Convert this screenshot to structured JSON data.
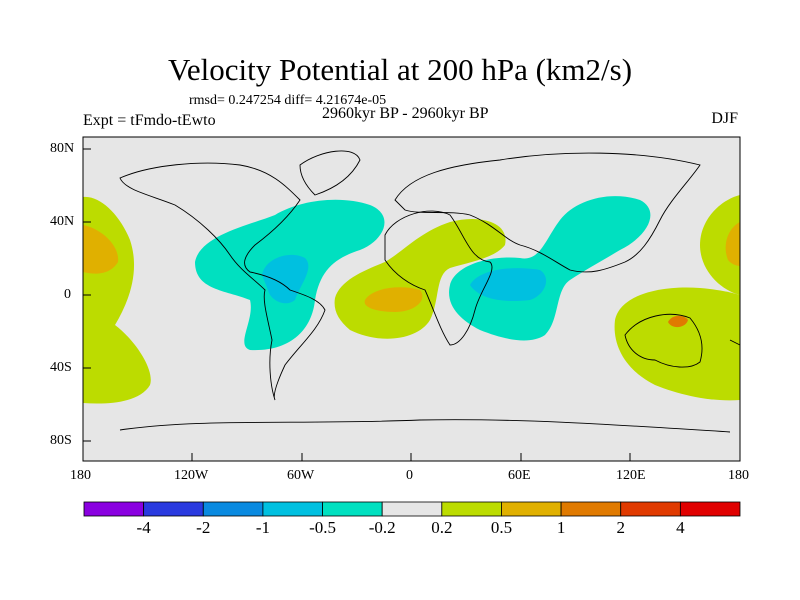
{
  "title": "Velocity Potential at 200 hPa (km2/s)",
  "stats": "rmsd= 0.247254 diff= 4.21674e-05",
  "left_label": "Expt = tFmdo-tEwto",
  "center_label": "2960kyr BP - 2960kyr BP",
  "right_label": "DJF",
  "lat_ticks": [
    "80N",
    "40N",
    "0",
    "40S",
    "80S"
  ],
  "lon_ticks": [
    "180",
    "120W",
    "60W",
    "0",
    "60E",
    "120E",
    "180"
  ],
  "colorbar": {
    "labels": [
      "-4",
      "-2",
      "-1",
      "-0.5",
      "-0.2",
      "0.2",
      "0.5",
      "1",
      "2",
      "4"
    ],
    "colors": [
      "#8a00e0",
      "#2a3adf",
      "#0a8ae0",
      "#00c0e0",
      "#00e0c0",
      "#e6e6e6",
      "#bcdc00",
      "#e0b000",
      "#e07a00",
      "#e03a00",
      "#e00000"
    ]
  },
  "map": {
    "land_ocean_fill": "#e6e6e6"
  }
}
